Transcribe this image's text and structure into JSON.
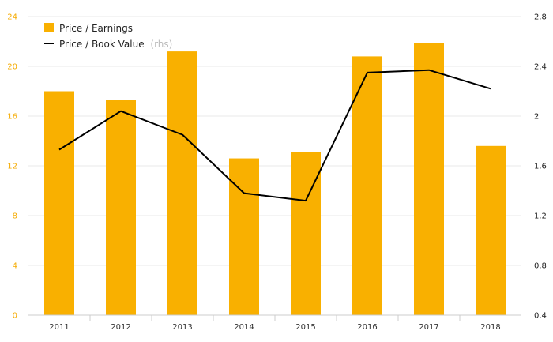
{
  "colors": {
    "bar": "#f9b000",
    "line": "#000000",
    "left_axis_text": "#f5ab00",
    "right_axis_text": "#222222",
    "grid": "#e8e8e8"
  },
  "legend": {
    "position": "top-left",
    "pe_label": "Price / Earnings",
    "pb_label": "Price / Book Value",
    "pb_note": "(rhs)"
  },
  "chart_data": {
    "type": "bar",
    "categories": [
      "2011",
      "2012",
      "2013",
      "2014",
      "2015",
      "2016",
      "2017",
      "2018"
    ],
    "series": [
      {
        "name": "Price / Earnings",
        "type": "bar",
        "axis": "left",
        "values": [
          18.0,
          17.3,
          21.2,
          12.6,
          13.1,
          20.8,
          21.9,
          13.6
        ]
      },
      {
        "name": "Price / Book Value",
        "type": "line",
        "axis": "right",
        "values": [
          1.73,
          2.04,
          1.85,
          1.38,
          1.32,
          2.35,
          2.37,
          2.22
        ]
      }
    ],
    "y_left": {
      "lim": [
        0,
        24
      ],
      "ticks": [
        "0",
        "4",
        "8",
        "12",
        "16",
        "20",
        "24"
      ]
    },
    "y_right": {
      "lim": [
        0.4,
        2.8
      ],
      "ticks": [
        "0.4",
        "0.8",
        "1.2",
        "1.6",
        "2",
        "2.4",
        "2.8"
      ]
    },
    "grid": true,
    "title": "",
    "xlabel": "",
    "ylabel": ""
  }
}
